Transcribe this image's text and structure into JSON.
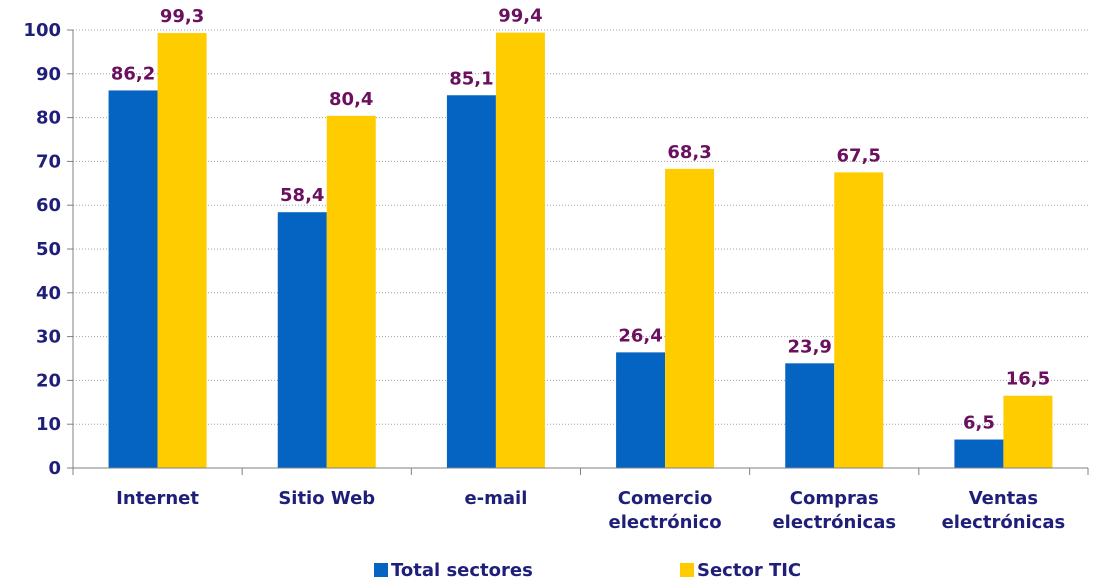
{
  "chart_data": {
    "type": "bar",
    "title": "",
    "xlabel": "",
    "ylabel": "",
    "ylim": [
      0,
      100
    ],
    "yticks": [
      0,
      10,
      20,
      30,
      40,
      50,
      60,
      70,
      80,
      90,
      100
    ],
    "grid": true,
    "legend_position": "bottom",
    "categories": [
      [
        "Internet"
      ],
      [
        "Sitio Web"
      ],
      [
        "e-mail"
      ],
      [
        "Comercio",
        "electrónico"
      ],
      [
        "Compras",
        "electrónicas"
      ],
      [
        "Ventas",
        "electrónicas"
      ]
    ],
    "series": [
      {
        "name": "Total sectores",
        "color": "#0563C1",
        "values": [
          86.2,
          58.4,
          85.1,
          26.4,
          23.9,
          6.5
        ],
        "labels": [
          "86,2",
          "58,4",
          "85,1",
          "26,4",
          "23,9",
          "6,5"
        ]
      },
      {
        "name": "Sector TIC",
        "color": "#FFCC00",
        "values": [
          99.3,
          80.4,
          99.4,
          68.3,
          67.5,
          16.5
        ],
        "labels": [
          "99,3",
          "80,4",
          "99,4",
          "68,3",
          "67,5",
          "16,5"
        ]
      }
    ]
  }
}
